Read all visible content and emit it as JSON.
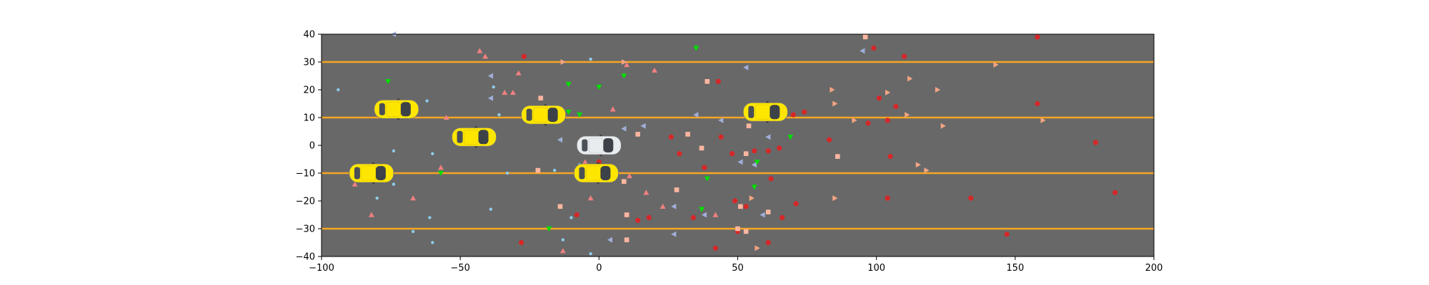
{
  "chart_data": {
    "type": "scatter",
    "title": "",
    "xlabel": "",
    "ylabel": "",
    "xlim": [
      -100,
      200
    ],
    "ylim": [
      -40,
      40
    ],
    "xticks": [
      -100,
      -50,
      0,
      50,
      100,
      150,
      200
    ],
    "yticks": [
      -40,
      -30,
      -20,
      -10,
      0,
      10,
      20,
      30,
      40
    ],
    "grid": false,
    "legend": "none",
    "colors": {
      "background": "#686868",
      "lane_line": "#f5a623",
      "ego_car": "#e8ecef",
      "other_car": "#ffe600"
    },
    "lane_lines_y": [
      -30,
      -10,
      10,
      30
    ],
    "ego_vehicle": {
      "x": 0,
      "y": 0
    },
    "vehicles": [
      {
        "x": -73,
        "y": 13
      },
      {
        "x": -45,
        "y": 3
      },
      {
        "x": -20,
        "y": 11
      },
      {
        "x": -82,
        "y": -10
      },
      {
        "x": -1,
        "y": -10
      },
      {
        "x": 60,
        "y": 12
      }
    ],
    "series": [
      {
        "marker": "circle",
        "color": "#d62728",
        "points": [
          [
            -27,
            32
          ],
          [
            -28,
            -35
          ],
          [
            -8,
            -25
          ],
          [
            0,
            -6
          ],
          [
            14,
            -27
          ],
          [
            18,
            -26
          ],
          [
            26,
            3
          ],
          [
            29,
            -3
          ],
          [
            34,
            -26
          ],
          [
            38,
            -8
          ],
          [
            42,
            -37
          ],
          [
            43,
            23
          ],
          [
            44,
            3
          ],
          [
            48,
            -3
          ],
          [
            49,
            -20
          ],
          [
            50,
            -31
          ],
          [
            53,
            -22
          ],
          [
            56,
            -2
          ],
          [
            61,
            -2
          ],
          [
            62,
            -12
          ],
          [
            65,
            -1
          ],
          [
            66,
            -26
          ],
          [
            61,
            -35
          ],
          [
            70,
            11
          ],
          [
            71,
            -21
          ],
          [
            74,
            12
          ],
          [
            83,
            2
          ],
          [
            97,
            8
          ],
          [
            99,
            35
          ],
          [
            101,
            17
          ],
          [
            104,
            9
          ],
          [
            105,
            -4
          ],
          [
            107,
            14
          ],
          [
            110,
            32
          ],
          [
            104,
            -19
          ],
          [
            134,
            -19
          ],
          [
            147,
            -32
          ],
          [
            158,
            39
          ],
          [
            158,
            15
          ],
          [
            179,
            1
          ],
          [
            186,
            -17
          ]
        ]
      },
      {
        "marker": "triangle-up",
        "color": "#f08080",
        "points": [
          [
            -43,
            34
          ],
          [
            -41,
            32
          ],
          [
            -34,
            19
          ],
          [
            -31,
            19
          ],
          [
            -29,
            26
          ],
          [
            -13,
            -38
          ],
          [
            -55,
            10
          ],
          [
            -57,
            -8
          ],
          [
            -67,
            -19
          ],
          [
            -82,
            -25
          ],
          [
            -88,
            -14
          ],
          [
            -5,
            -6
          ],
          [
            -3,
            -19
          ],
          [
            5,
            13
          ],
          [
            10,
            29
          ],
          [
            11,
            -11
          ],
          [
            17,
            -17
          ],
          [
            20,
            27
          ],
          [
            23,
            -22
          ],
          [
            42,
            -25
          ]
        ]
      },
      {
        "marker": "triangle-right",
        "color": "#f4a582",
        "points": [
          [
            -13,
            30
          ],
          [
            9,
            30
          ],
          [
            55,
            -19
          ],
          [
            57,
            -37
          ],
          [
            84,
            20
          ],
          [
            85,
            15
          ],
          [
            85,
            -19
          ],
          [
            92,
            9
          ],
          [
            104,
            19
          ],
          [
            111,
            11
          ],
          [
            112,
            24
          ],
          [
            115,
            -7
          ],
          [
            118,
            -9
          ],
          [
            122,
            20
          ],
          [
            124,
            7
          ],
          [
            143,
            29
          ],
          [
            160,
            9
          ]
        ]
      },
      {
        "marker": "triangle-left",
        "color": "#a0aed8",
        "points": [
          [
            -74,
            40
          ],
          [
            -39,
            25
          ],
          [
            -39,
            17
          ],
          [
            -14,
            2
          ],
          [
            4,
            -34
          ],
          [
            9,
            6
          ],
          [
            16,
            7
          ],
          [
            27,
            -22
          ],
          [
            27,
            -32
          ],
          [
            35,
            11
          ],
          [
            38,
            -25
          ],
          [
            44,
            9
          ],
          [
            51,
            -6
          ],
          [
            53,
            28
          ],
          [
            56,
            -7
          ],
          [
            59,
            -25
          ],
          [
            61,
            3
          ],
          [
            95,
            34
          ]
        ]
      },
      {
        "marker": "triangle-down",
        "color": "#00e000",
        "points": [
          [
            -76,
            23
          ],
          [
            -57,
            -10
          ],
          [
            -18,
            -30
          ],
          [
            -11,
            22
          ],
          [
            -11,
            12
          ],
          [
            -7,
            11
          ],
          [
            0,
            21
          ],
          [
            9,
            25
          ],
          [
            35,
            35
          ],
          [
            37,
            -23
          ],
          [
            39,
            -12
          ],
          [
            56,
            -15
          ],
          [
            57,
            -6
          ],
          [
            69,
            3
          ]
        ]
      },
      {
        "marker": "square",
        "color": "#ffb6a0",
        "points": [
          [
            -21,
            17
          ],
          [
            -22,
            -9
          ],
          [
            -14,
            -22
          ],
          [
            9,
            -13
          ],
          [
            10,
            -25
          ],
          [
            10,
            -34
          ],
          [
            14,
            4
          ],
          [
            28,
            -16
          ],
          [
            32,
            4
          ],
          [
            37,
            -1
          ],
          [
            39,
            23
          ],
          [
            50,
            -30
          ],
          [
            51,
            -22
          ],
          [
            53,
            -31
          ],
          [
            53,
            -3
          ],
          [
            54,
            7
          ],
          [
            61,
            -24
          ],
          [
            86,
            -4
          ],
          [
            96,
            39
          ]
        ]
      },
      {
        "marker": "dot",
        "color": "#8ecbe8",
        "points": [
          [
            -94,
            20
          ],
          [
            -62,
            16
          ],
          [
            -60,
            -3
          ],
          [
            -74,
            -2
          ],
          [
            -74,
            -14
          ],
          [
            -80,
            -19
          ],
          [
            -61,
            -26
          ],
          [
            -67,
            -31
          ],
          [
            -60,
            -35
          ],
          [
            -38,
            21
          ],
          [
            -36,
            11
          ],
          [
            -33,
            -10
          ],
          [
            -39,
            -23
          ],
          [
            -16,
            -9
          ],
          [
            -13,
            -34
          ],
          [
            -3,
            31
          ],
          [
            -3,
            -39
          ],
          [
            -10,
            -26
          ],
          [
            -7,
            -7
          ]
        ]
      }
    ]
  }
}
